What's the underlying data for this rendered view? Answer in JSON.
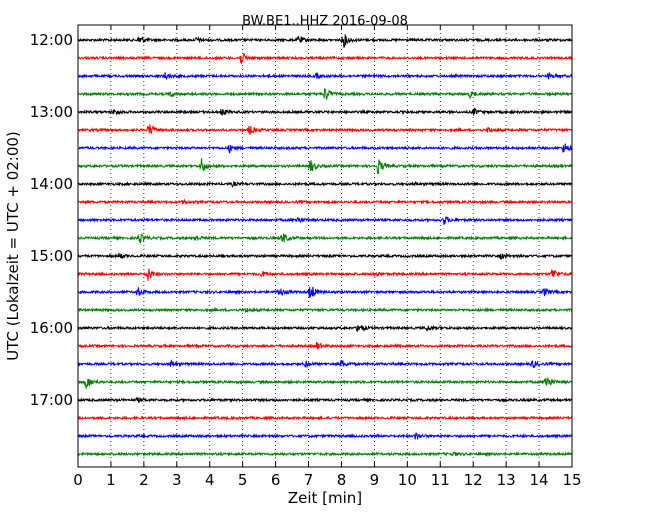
{
  "chart_data": {
    "type": "line",
    "title": "BW.BE1..HHZ 2016-09-08",
    "xlabel": "Zeit  [min]",
    "ylabel": "UTC (Lokalzeit = UTC + 02:00)",
    "xlim": [
      0,
      15
    ],
    "x_ticks": [
      "0",
      "1",
      "2",
      "3",
      "4",
      "5",
      "6",
      "7",
      "8",
      "9",
      "10",
      "11",
      "12",
      "13",
      "14",
      "15"
    ],
    "y_tick_labels": [
      "12:00",
      "13:00",
      "14:00",
      "15:00",
      "16:00",
      "17:00"
    ],
    "grid": "vertical dotted at each minute",
    "trace_colors": [
      "#000000",
      "#ff0000",
      "#0000ff",
      "#008000"
    ],
    "trace_interval_min": 15,
    "traces": [
      {
        "start": "12:00",
        "events": [
          {
            "t": 1.85,
            "a": 0.55
          },
          {
            "t": 3.6,
            "a": 0.25
          },
          {
            "t": 6.7,
            "a": 0.5
          },
          {
            "t": 8.05,
            "a": 0.9
          }
        ]
      },
      {
        "start": "12:15",
        "events": [
          {
            "t": 4.95,
            "a": 0.75
          }
        ]
      },
      {
        "start": "12:30",
        "events": [
          {
            "t": 2.65,
            "a": 0.4
          },
          {
            "t": 7.2,
            "a": 0.3
          },
          {
            "t": 14.3,
            "a": 0.3
          }
        ]
      },
      {
        "start": "12:45",
        "events": [
          {
            "t": 2.8,
            "a": 0.3
          },
          {
            "t": 7.5,
            "a": 0.85
          },
          {
            "t": 11.9,
            "a": 0.35
          }
        ]
      },
      {
        "start": "13:00",
        "events": [
          {
            "t": 1.1,
            "a": 0.3
          },
          {
            "t": 4.35,
            "a": 0.45
          },
          {
            "t": 12.0,
            "a": 0.4
          }
        ]
      },
      {
        "start": "13:15",
        "events": [
          {
            "t": 2.15,
            "a": 0.8
          },
          {
            "t": 5.2,
            "a": 0.55
          },
          {
            "t": 12.45,
            "a": 0.3
          }
        ]
      },
      {
        "start": "13:30",
        "events": [
          {
            "t": 4.6,
            "a": 0.45
          },
          {
            "t": 14.75,
            "a": 0.65
          }
        ]
      },
      {
        "start": "13:45",
        "events": [
          {
            "t": 3.75,
            "a": 0.9
          },
          {
            "t": 7.05,
            "a": 0.8
          },
          {
            "t": 9.1,
            "a": 0.95
          }
        ]
      },
      {
        "start": "14:00",
        "events": [
          {
            "t": 4.7,
            "a": 0.2
          },
          {
            "t": 10.2,
            "a": 0.2
          }
        ]
      },
      {
        "start": "14:15",
        "events": [
          {
            "t": 3.2,
            "a": 0.2
          }
        ]
      },
      {
        "start": "14:30",
        "events": [
          {
            "t": 6.65,
            "a": 0.4
          },
          {
            "t": 11.1,
            "a": 0.55
          }
        ]
      },
      {
        "start": "14:45",
        "events": [
          {
            "t": 1.85,
            "a": 0.6
          },
          {
            "t": 3.55,
            "a": 0.3
          },
          {
            "t": 6.2,
            "a": 0.65
          }
        ]
      },
      {
        "start": "15:00",
        "events": [
          {
            "t": 1.25,
            "a": 0.3
          },
          {
            "t": 12.85,
            "a": 0.3
          }
        ]
      },
      {
        "start": "15:15",
        "events": [
          {
            "t": 2.1,
            "a": 0.95
          },
          {
            "t": 5.6,
            "a": 0.3
          },
          {
            "t": 9.0,
            "a": 0.35
          },
          {
            "t": 14.4,
            "a": 0.65
          }
        ]
      },
      {
        "start": "15:30",
        "events": [
          {
            "t": 1.8,
            "a": 0.5
          },
          {
            "t": 6.1,
            "a": 0.55
          },
          {
            "t": 7.05,
            "a": 1.0
          },
          {
            "t": 14.15,
            "a": 0.45
          }
        ]
      },
      {
        "start": "15:45",
        "events": [
          {
            "t": 5.1,
            "a": 0.2
          }
        ]
      },
      {
        "start": "16:00",
        "events": [
          {
            "t": 8.5,
            "a": 0.6
          },
          {
            "t": 10.6,
            "a": 0.3
          }
        ]
      },
      {
        "start": "16:15",
        "events": [
          {
            "t": 7.25,
            "a": 0.45
          }
        ]
      },
      {
        "start": "16:30",
        "events": [
          {
            "t": 2.8,
            "a": 0.4
          },
          {
            "t": 6.9,
            "a": 0.35
          },
          {
            "t": 8.0,
            "a": 0.45
          },
          {
            "t": 13.8,
            "a": 0.45
          }
        ]
      },
      {
        "start": "16:45",
        "events": [
          {
            "t": 0.25,
            "a": 0.85
          },
          {
            "t": 14.2,
            "a": 1.0
          }
        ]
      },
      {
        "start": "17:00",
        "events": [
          {
            "t": 1.8,
            "a": 0.2
          }
        ]
      },
      {
        "start": "17:15",
        "events": []
      },
      {
        "start": "17:30",
        "events": [
          {
            "t": 10.25,
            "a": 0.45
          }
        ]
      },
      {
        "start": "17:45",
        "events": [
          {
            "t": 11.4,
            "a": 0.2
          }
        ]
      }
    ]
  }
}
